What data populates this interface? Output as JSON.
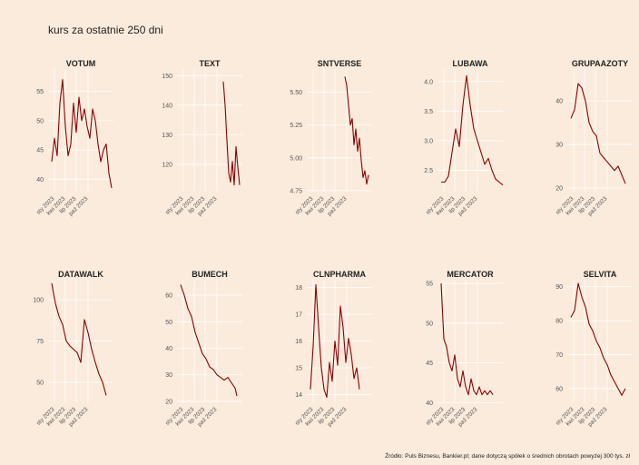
{
  "header": {
    "title": "kurs za ostatnie 250 dni"
  },
  "footer": {
    "caption": "Źródło: Puls Biznesu, Bankier.pl; dane dotyczą spółek o średnich obrotach powyżej 300 tys. zł"
  },
  "colors": {
    "line": "#8b0000",
    "background": "#faebdc",
    "grid": "#ffffff"
  },
  "chart_data": [
    {
      "type": "line",
      "title": "VOTUM",
      "xticks": [
        "sty 2023",
        "kwi 2023",
        "lip 2023",
        "paź 2023"
      ],
      "yticks": [
        40,
        45,
        50,
        55
      ],
      "ylim": [
        38.5,
        58.2
      ],
      "points": [
        [
          0,
          43
        ],
        [
          3,
          47
        ],
        [
          6,
          44
        ],
        [
          9,
          53
        ],
        [
          12,
          57
        ],
        [
          15,
          49
        ],
        [
          18,
          44
        ],
        [
          21,
          46
        ],
        [
          24,
          53
        ],
        [
          27,
          48
        ],
        [
          30,
          54
        ],
        [
          33,
          50
        ],
        [
          36,
          52
        ],
        [
          39,
          49
        ],
        [
          42,
          47
        ],
        [
          45,
          52
        ],
        [
          48,
          50
        ],
        [
          51,
          46
        ],
        [
          54,
          43
        ],
        [
          57,
          45
        ],
        [
          60,
          46
        ],
        [
          63,
          41
        ],
        [
          66,
          38.5
        ]
      ]
    },
    {
      "type": "line",
      "title": "TEXT",
      "xticks": [
        "sty 2023",
        "kwi 2023",
        "lip 2023",
        "paź 2023"
      ],
      "yticks": [
        120,
        130,
        140,
        150
      ],
      "ylim": [
        112,
        151
      ],
      "points": [
        [
          47,
          148
        ],
        [
          49,
          140
        ],
        [
          51,
          128
        ],
        [
          53,
          117
        ],
        [
          55,
          114
        ],
        [
          57,
          121
        ],
        [
          59,
          113
        ],
        [
          61,
          126
        ],
        [
          63,
          119
        ],
        [
          65,
          113
        ]
      ]
    },
    {
      "type": "line",
      "title": "SNTVERSE",
      "xticks": [
        "sty 2023",
        "kwi 2023",
        "lip 2023",
        "paź 2023"
      ],
      "yticks": [
        4.75,
        5.0,
        5.25,
        5.5
      ],
      "ylim": [
        4.77,
        5.65
      ],
      "points": [
        [
          38,
          5.62
        ],
        [
          40,
          5.55
        ],
        [
          42,
          5.4
        ],
        [
          44,
          5.25
        ],
        [
          46,
          5.3
        ],
        [
          48,
          5.1
        ],
        [
          50,
          5.22
        ],
        [
          52,
          5.05
        ],
        [
          54,
          5.15
        ],
        [
          56,
          4.98
        ],
        [
          58,
          4.85
        ],
        [
          60,
          4.9
        ],
        [
          62,
          4.8
        ],
        [
          64,
          4.87
        ]
      ]
    },
    {
      "type": "line",
      "title": "LUBAWA",
      "xticks": [
        "sty 2023",
        "kwi 2023",
        "lip 2023",
        "paź 2023"
      ],
      "yticks": [
        2.5,
        3.0,
        3.5,
        4.0
      ],
      "ylim": [
        2.2,
        4.15
      ],
      "points": [
        [
          0,
          2.3
        ],
        [
          4,
          2.3
        ],
        [
          8,
          2.4
        ],
        [
          12,
          2.8
        ],
        [
          16,
          3.2
        ],
        [
          20,
          2.9
        ],
        [
          24,
          3.6
        ],
        [
          28,
          4.1
        ],
        [
          32,
          3.6
        ],
        [
          36,
          3.2
        ],
        [
          40,
          3.0
        ],
        [
          44,
          2.8
        ],
        [
          48,
          2.6
        ],
        [
          52,
          2.7
        ],
        [
          56,
          2.5
        ],
        [
          60,
          2.35
        ],
        [
          64,
          2.3
        ],
        [
          68,
          2.25
        ]
      ]
    },
    {
      "type": "line",
      "title": "GRUPAAZOTY",
      "xticks": [
        "sty 2023",
        "kwi 2023",
        "lip 2023",
        "paź 2023"
      ],
      "yticks": [
        20,
        30,
        40
      ],
      "ylim": [
        20,
        46.5
      ],
      "points": [
        [
          0,
          36
        ],
        [
          4,
          38
        ],
        [
          8,
          44
        ],
        [
          12,
          43
        ],
        [
          16,
          40
        ],
        [
          20,
          35
        ],
        [
          24,
          33
        ],
        [
          28,
          32
        ],
        [
          32,
          28
        ],
        [
          36,
          27
        ],
        [
          40,
          26
        ],
        [
          44,
          25
        ],
        [
          48,
          24
        ],
        [
          52,
          25
        ],
        [
          56,
          23
        ],
        [
          60,
          21
        ]
      ]
    },
    {
      "type": "line",
      "title": "DATAWALK",
      "xticks": [
        "sty 2023",
        "kwi 2023",
        "lip 2023",
        "paź 2023"
      ],
      "yticks": [
        50,
        75,
        100
      ],
      "ylim": [
        40,
        110
      ],
      "points": [
        [
          0,
          110
        ],
        [
          4,
          98
        ],
        [
          8,
          90
        ],
        [
          12,
          85
        ],
        [
          16,
          75
        ],
        [
          20,
          72
        ],
        [
          24,
          70
        ],
        [
          28,
          68
        ],
        [
          32,
          62
        ],
        [
          36,
          88
        ],
        [
          40,
          80
        ],
        [
          44,
          70
        ],
        [
          48,
          62
        ],
        [
          52,
          55
        ],
        [
          56,
          50
        ],
        [
          60,
          42
        ]
      ]
    },
    {
      "type": "line",
      "title": "BUMECH",
      "xticks": [
        "sty 2023",
        "kwi 2023",
        "lip 2023",
        "paź 2023"
      ],
      "yticks": [
        20,
        30,
        40,
        50,
        60
      ],
      "ylim": [
        21,
        64.5
      ],
      "points": [
        [
          0,
          64
        ],
        [
          4,
          60
        ],
        [
          8,
          55
        ],
        [
          12,
          52
        ],
        [
          16,
          46
        ],
        [
          20,
          42
        ],
        [
          24,
          38
        ],
        [
          28,
          36
        ],
        [
          32,
          33
        ],
        [
          36,
          32
        ],
        [
          40,
          30
        ],
        [
          44,
          29
        ],
        [
          48,
          28
        ],
        [
          52,
          29
        ],
        [
          56,
          27
        ],
        [
          60,
          25
        ],
        [
          62,
          22
        ]
      ]
    },
    {
      "type": "line",
      "title": "CLNPHARMA",
      "xticks": [
        "sty 2023",
        "kwi 2023",
        "lip 2023",
        "paź 2023"
      ],
      "yticks": [
        14,
        15,
        16,
        17,
        18
      ],
      "ylim": [
        13.85,
        18.15
      ],
      "points": [
        [
          0,
          14.2
        ],
        [
          3,
          15.8
        ],
        [
          6,
          18.1
        ],
        [
          9,
          16.5
        ],
        [
          12,
          15.0
        ],
        [
          15,
          14.2
        ],
        [
          18,
          13.9
        ],
        [
          21,
          15.2
        ],
        [
          24,
          14.5
        ],
        [
          27,
          16.0
        ],
        [
          30,
          15.1
        ],
        [
          33,
          17.3
        ],
        [
          36,
          16.5
        ],
        [
          39,
          15.2
        ],
        [
          42,
          16.1
        ],
        [
          45,
          15.5
        ],
        [
          48,
          14.6
        ],
        [
          51,
          15.0
        ],
        [
          54,
          14.2
        ]
      ]
    },
    {
      "type": "line",
      "title": "MERCATOR",
      "xticks": [
        "sty 2023",
        "kwi 2023",
        "lip 2023",
        "paź 2023"
      ],
      "yticks": [
        40,
        45,
        50,
        55
      ],
      "ylim": [
        40.5,
        55
      ],
      "points": [
        [
          0,
          55
        ],
        [
          3,
          48
        ],
        [
          6,
          47
        ],
        [
          9,
          45
        ],
        [
          12,
          44
        ],
        [
          15,
          46
        ],
        [
          18,
          43
        ],
        [
          21,
          42
        ],
        [
          24,
          44
        ],
        [
          27,
          42
        ],
        [
          30,
          41
        ],
        [
          33,
          43
        ],
        [
          36,
          41.5
        ],
        [
          39,
          41
        ],
        [
          42,
          42
        ],
        [
          45,
          41
        ],
        [
          48,
          41.5
        ],
        [
          51,
          41
        ],
        [
          54,
          41.5
        ],
        [
          57,
          41
        ]
      ]
    },
    {
      "type": "line",
      "title": "SELVITA",
      "xticks": [
        "sty 2023",
        "kwi 2023",
        "lip 2023",
        "paź 2023"
      ],
      "yticks": [
        60,
        70,
        80,
        90
      ],
      "ylim": [
        57,
        91
      ],
      "points": [
        [
          0,
          81
        ],
        [
          4,
          83
        ],
        [
          8,
          91
        ],
        [
          12,
          87
        ],
        [
          16,
          84
        ],
        [
          20,
          79
        ],
        [
          24,
          77
        ],
        [
          28,
          74
        ],
        [
          32,
          72
        ],
        [
          36,
          69
        ],
        [
          40,
          67
        ],
        [
          44,
          64
        ],
        [
          48,
          62
        ],
        [
          52,
          60
        ],
        [
          56,
          58
        ],
        [
          60,
          60
        ]
      ]
    }
  ]
}
